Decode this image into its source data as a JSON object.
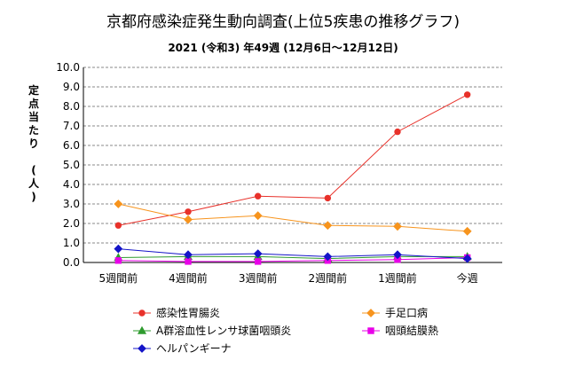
{
  "chart_data": {
    "type": "line",
    "title": "京都府感染症発生動向調査(上位5疾患の推移グラフ)",
    "subtitle": "2021 (令和3) 年49週 (12月6日～12月12日)",
    "ylabel_chars": [
      "定",
      "点",
      "当",
      "た",
      "り",
      "",
      "(",
      "人",
      ")"
    ],
    "categories": [
      "5週間前",
      "4週間前",
      "3週間前",
      "2週間前",
      "1週間前",
      "今週"
    ],
    "ylim": [
      0,
      10
    ],
    "y_ticks": [
      "0.0",
      "1.0",
      "2.0",
      "3.0",
      "4.0",
      "5.0",
      "6.0",
      "7.0",
      "8.0",
      "9.0",
      "10.0"
    ],
    "grid": true,
    "legend_position": "bottom",
    "series": [
      {
        "name": "感染性胃腸炎",
        "color": "#e8312a",
        "marker": "circle",
        "values": [
          1.9,
          2.6,
          3.4,
          3.3,
          6.7,
          8.6
        ]
      },
      {
        "name": "手足口病",
        "color": "#f7941d",
        "marker": "diamond",
        "values": [
          3.0,
          2.2,
          2.4,
          1.9,
          1.85,
          1.6
        ]
      },
      {
        "name": "A群溶血性レンサ球菌咽頭炎",
        "color": "#2e9b2e",
        "marker": "triangle",
        "values": [
          0.25,
          0.3,
          0.3,
          0.2,
          0.3,
          0.3
        ]
      },
      {
        "name": "咽頭結膜熱",
        "color": "#e800e8",
        "marker": "square",
        "values": [
          0.1,
          0.05,
          0.05,
          0.1,
          0.15,
          0.25
        ]
      },
      {
        "name": "ヘルパンギーナ",
        "color": "#1414c8",
        "marker": "diamond",
        "values": [
          0.7,
          0.4,
          0.45,
          0.3,
          0.4,
          0.2
        ]
      }
    ]
  }
}
